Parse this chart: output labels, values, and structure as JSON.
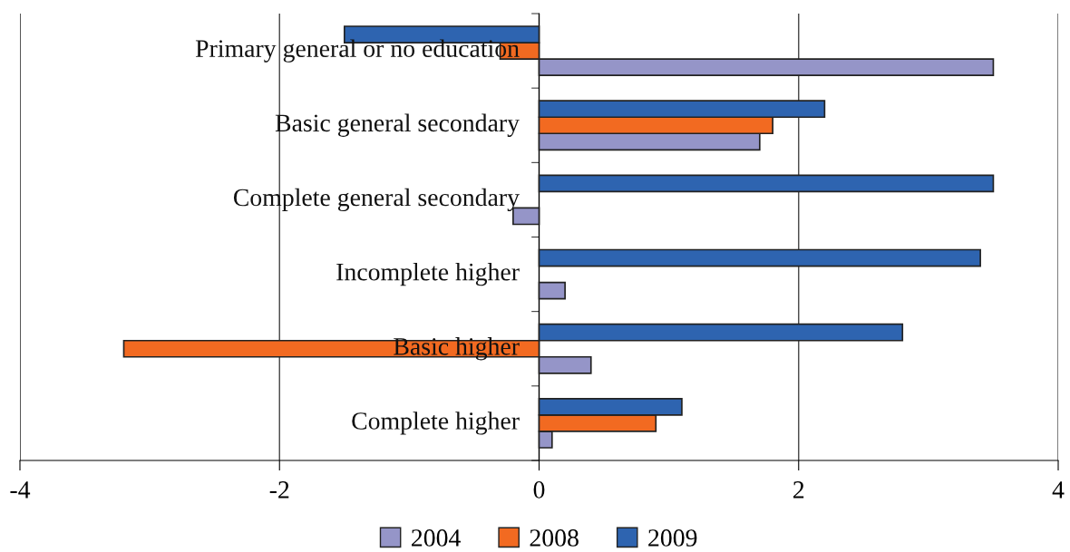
{
  "chart_data": {
    "type": "bar",
    "orientation": "horizontal",
    "categories": [
      "Primary general or no education",
      "Basic general secondary",
      "Complete general secondary",
      "Incomplete higher",
      "Basic higher",
      "Complete higher"
    ],
    "series": [
      {
        "name": "2004",
        "color": "#9595c8",
        "values": [
          3.5,
          1.7,
          -0.2,
          0.2,
          0.4,
          0.1
        ]
      },
      {
        "name": "2008",
        "color": "#f26a21",
        "values": [
          -0.3,
          1.8,
          null,
          null,
          -3.2,
          0.9
        ]
      },
      {
        "name": "2009",
        "color": "#2e64b0",
        "values": [
          -1.5,
          2.2,
          3.5,
          3.4,
          2.8,
          1.1
        ]
      }
    ],
    "xlim": [
      -4,
      4
    ],
    "xticks": [
      -4,
      -2,
      0,
      2,
      4
    ],
    "grid": "x",
    "legend": "bottom"
  }
}
